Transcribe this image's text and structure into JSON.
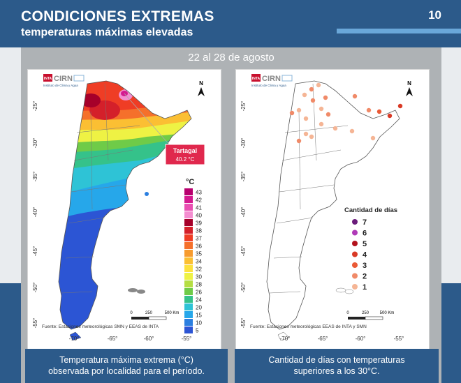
{
  "header": {
    "title": "CONDICIONES EXTREMAS",
    "subtitle": "temperaturas máximas elevadas",
    "page_number": "10"
  },
  "period": "22 al 28 de agosto",
  "logo": {
    "name": "CIRN",
    "org": "INTA",
    "subtitle": "Instituto de Clima y Agua"
  },
  "left_map": {
    "callout_label": "Tartagal",
    "callout_value": "40.2 °C",
    "legend_title": "°C",
    "legend": [
      {
        "label": "43",
        "color": "#b8006e"
      },
      {
        "label": "42",
        "color": "#d4198f"
      },
      {
        "label": "41",
        "color": "#e94fb2"
      },
      {
        "label": "40",
        "color": "#f48dd0"
      },
      {
        "label": "39",
        "color": "#a6002a"
      },
      {
        "label": "38",
        "color": "#d4202a"
      },
      {
        "label": "37",
        "color": "#ef3d25"
      },
      {
        "label": "36",
        "color": "#f5702b"
      },
      {
        "label": "35",
        "color": "#f79b2e"
      },
      {
        "label": "34",
        "color": "#fbbf33"
      },
      {
        "label": "32",
        "color": "#fde13d"
      },
      {
        "label": "30",
        "color": "#eef244"
      },
      {
        "label": "28",
        "color": "#b5de43"
      },
      {
        "label": "26",
        "color": "#6fcb48"
      },
      {
        "label": "24",
        "color": "#35c28a"
      },
      {
        "label": "20",
        "color": "#2ec3d6"
      },
      {
        "label": "15",
        "color": "#26a7ea"
      },
      {
        "label": "10",
        "color": "#2b7fe0"
      },
      {
        "label": "5",
        "color": "#2c55d4"
      }
    ],
    "scale": {
      "zero": "0",
      "mid": "250",
      "end": "500 Km"
    },
    "source": "Fuente: Estaciones meteorológicas SMN y EEAS de INTA"
  },
  "right_map": {
    "legend_title": "Cantidad de días",
    "legend": [
      {
        "label": "7",
        "color": "#6a1b7a"
      },
      {
        "label": "6",
        "color": "#b03bb8"
      },
      {
        "label": "5",
        "color": "#b3121c"
      },
      {
        "label": "4",
        "color": "#d93a26"
      },
      {
        "label": "3",
        "color": "#ea5a36"
      },
      {
        "label": "2",
        "color": "#f08a68"
      },
      {
        "label": "1",
        "color": "#f5b595"
      }
    ],
    "scale": {
      "zero": "0",
      "mid": "250",
      "end": "500 Km"
    },
    "source": "Fuente: Estaciones meteorológicas EEAS de INTA y SMN"
  },
  "axes": {
    "lat_ticks": [
      "-25°",
      "-30°",
      "-35°",
      "-40°",
      "-45°",
      "-50°",
      "-55°"
    ],
    "lon_ticks": [
      "-70°",
      "-65°",
      "-60°",
      "-55°"
    ]
  },
  "north_label": "N",
  "captions": {
    "left": [
      "Temperatura máxima extrema (°C)",
      "observada por localidad para el período."
    ],
    "right": [
      "Cantidad de días con temperaturas",
      "superiores a los 30°C."
    ]
  },
  "colors": {
    "header_bg": "#2c5a8a",
    "accent_line": "#6aa7d9",
    "content_bg": "#aeb2b5",
    "callout_bg": "#e0284d"
  }
}
